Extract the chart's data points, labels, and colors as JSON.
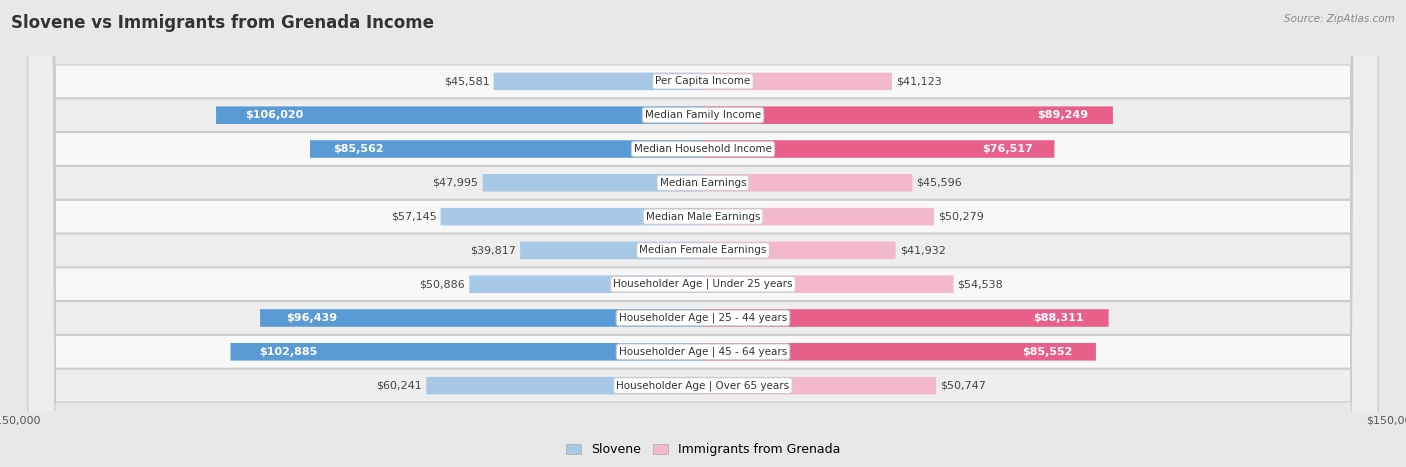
{
  "title": "Slovene vs Immigrants from Grenada Income",
  "source": "Source: ZipAtlas.com",
  "categories": [
    "Per Capita Income",
    "Median Family Income",
    "Median Household Income",
    "Median Earnings",
    "Median Male Earnings",
    "Median Female Earnings",
    "Householder Age | Under 25 years",
    "Householder Age | 25 - 44 years",
    "Householder Age | 45 - 64 years",
    "Householder Age | Over 65 years"
  ],
  "slovene_values": [
    45581,
    106020,
    85562,
    47995,
    57145,
    39817,
    50886,
    96439,
    102885,
    60241
  ],
  "grenada_values": [
    41123,
    89249,
    76517,
    45596,
    50279,
    41932,
    54538,
    88311,
    85552,
    50747
  ],
  "slovene_labels": [
    "$45,581",
    "$106,020",
    "$85,562",
    "$47,995",
    "$57,145",
    "$39,817",
    "$50,886",
    "$96,439",
    "$102,885",
    "$60,241"
  ],
  "grenada_labels": [
    "$41,123",
    "$89,249",
    "$76,517",
    "$45,596",
    "$50,279",
    "$41,932",
    "$54,538",
    "$88,311",
    "$85,552",
    "$50,747"
  ],
  "slovene_color_light": "#a8c8e8",
  "slovene_color_dark": "#5b9bd5",
  "grenada_color_light": "#f4b8cc",
  "grenada_color_dark": "#e8608a",
  "max_value": 150000,
  "background_color": "#e8e8e8",
  "row_bg_color": "#f8f8f8",
  "row_alt_bg_color": "#eeeeee",
  "title_fontsize": 12,
  "label_fontsize": 8,
  "category_fontsize": 7.5,
  "axis_label_fontsize": 8,
  "legend_fontsize": 9,
  "slovene_threshold": 70000,
  "grenada_threshold": 70000
}
